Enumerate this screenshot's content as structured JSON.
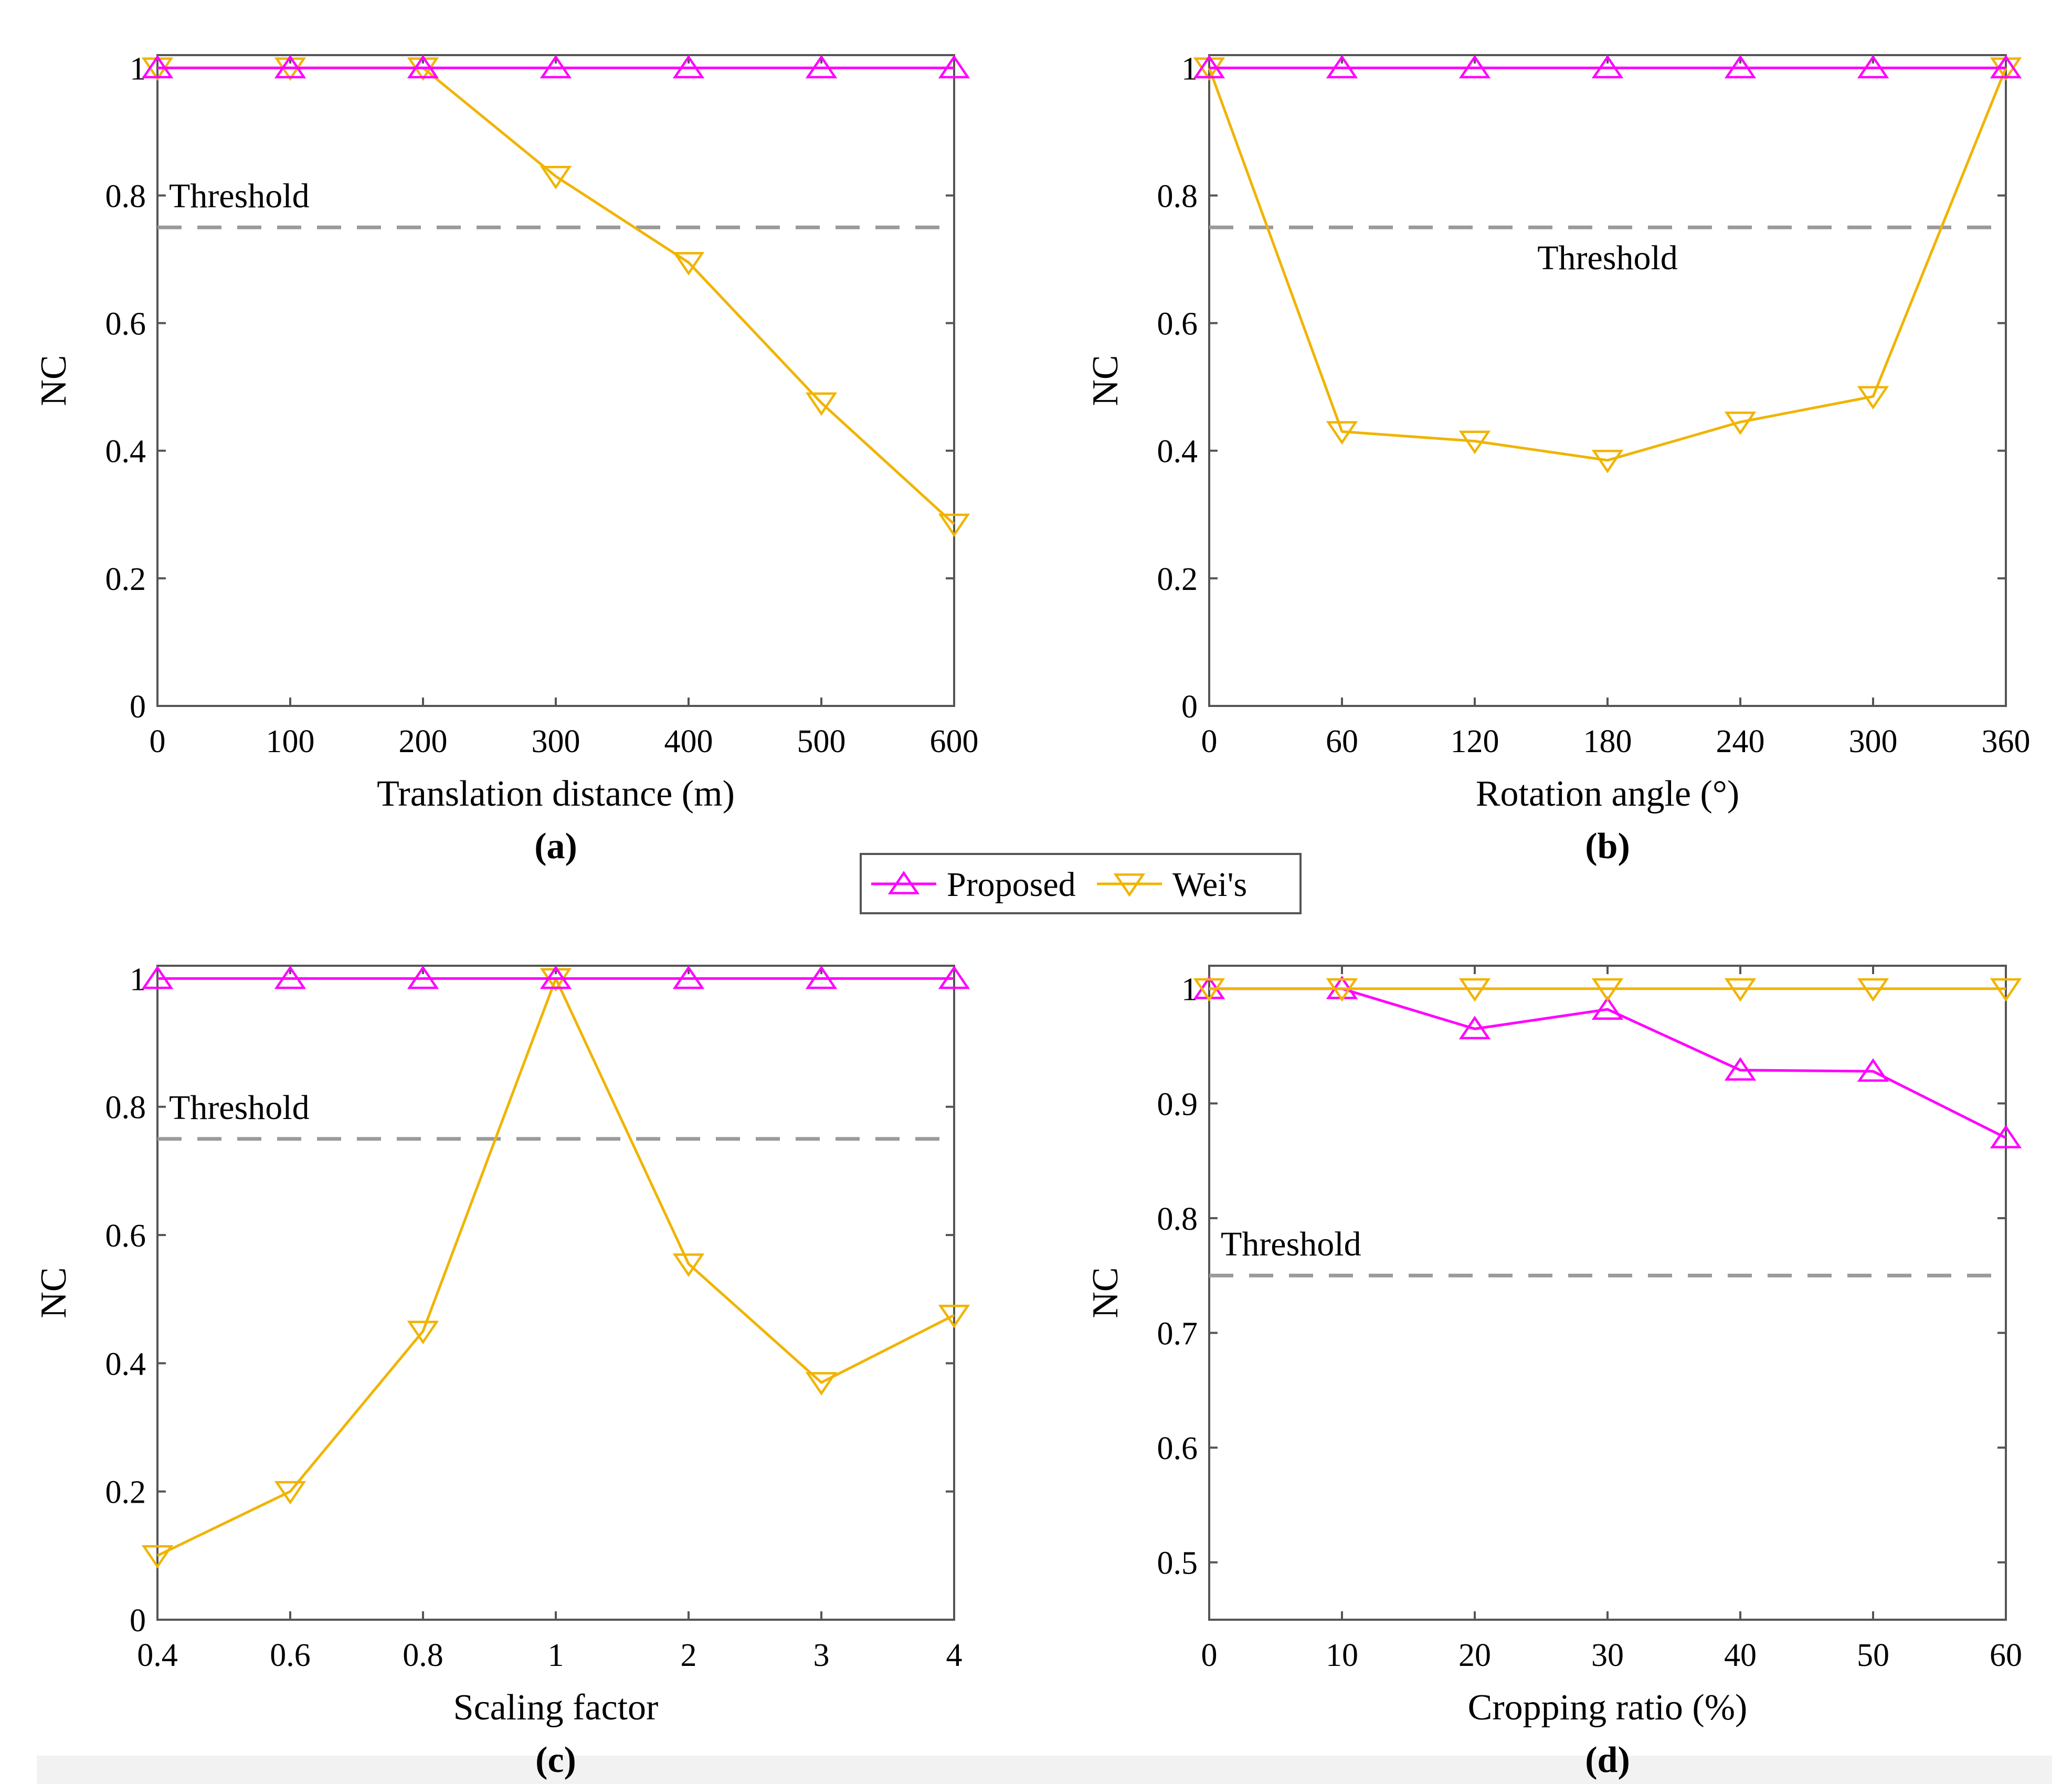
{
  "colors": {
    "proposed": "#ff00ff",
    "weis": "#f0b400",
    "threshold": "#9a9a9a",
    "axis": "#555555"
  },
  "legend": {
    "items": [
      {
        "label": "Proposed",
        "color": "#ff00ff",
        "marker": "triangle-up"
      },
      {
        "label": "Wei's",
        "color": "#f0b400",
        "marker": "triangle-down"
      }
    ]
  },
  "chart_data": [
    {
      "panel": "(a)",
      "type": "line",
      "xlabel": "Translation distance (m)",
      "ylabel": "NC",
      "categories": [
        "0",
        "100",
        "200",
        "300",
        "400",
        "500",
        "600"
      ],
      "ylim": [
        0,
        1.02
      ],
      "yticks": [
        0,
        0.2,
        0.4,
        0.6,
        0.8,
        1
      ],
      "ytick_labels": [
        "0",
        "0.2",
        "0.4",
        "0.6",
        "0.8",
        "1"
      ],
      "threshold": {
        "value": 0.75,
        "label": "Threshold",
        "label_position": "above-left"
      },
      "series": [
        {
          "name": "Proposed",
          "values": [
            1,
            1,
            1,
            1,
            1,
            1,
            1
          ]
        },
        {
          "name": "Wei's",
          "values": [
            1,
            1,
            1,
            0.83,
            0.695,
            0.475,
            0.285
          ]
        }
      ]
    },
    {
      "panel": "(b)",
      "type": "line",
      "xlabel": "Rotation angle (°)",
      "ylabel": "NC",
      "categories": [
        "0",
        "60",
        "120",
        "180",
        "240",
        "300",
        "360"
      ],
      "ylim": [
        0,
        1.02
      ],
      "yticks": [
        0,
        0.2,
        0.4,
        0.6,
        0.8,
        1
      ],
      "ytick_labels": [
        "0",
        "0.2",
        "0.4",
        "0.6",
        "0.8",
        "1"
      ],
      "threshold": {
        "value": 0.75,
        "label": "Threshold",
        "label_position": "below-center"
      },
      "series": [
        {
          "name": "Proposed",
          "values": [
            1,
            1,
            1,
            1,
            1,
            1,
            1
          ]
        },
        {
          "name": "Wei's",
          "values": [
            1,
            0.43,
            0.415,
            0.385,
            0.445,
            0.485,
            1
          ]
        }
      ]
    },
    {
      "panel": "(c)",
      "type": "line",
      "xlabel": "Scaling factor",
      "ylabel": "NC",
      "categories": [
        "0.4",
        "0.6",
        "0.8",
        "1",
        "2",
        "3",
        "4"
      ],
      "ylim": [
        0,
        1.02
      ],
      "yticks": [
        0,
        0.2,
        0.4,
        0.6,
        0.8,
        1
      ],
      "ytick_labels": [
        "0",
        "0.2",
        "0.4",
        "0.6",
        "0.8",
        "1"
      ],
      "threshold": {
        "value": 0.75,
        "label": "Threshold",
        "label_position": "above-left"
      },
      "series": [
        {
          "name": "Proposed",
          "values": [
            1,
            1,
            1,
            1,
            1,
            1,
            1
          ]
        },
        {
          "name": "Wei's",
          "values": [
            0.1,
            0.2,
            0.45,
            1,
            0.555,
            0.37,
            0.475
          ]
        }
      ]
    },
    {
      "panel": "(d)",
      "type": "line",
      "xlabel": "Cropping ratio (%)",
      "ylabel": "NC",
      "categories": [
        "0",
        "10",
        "20",
        "30",
        "40",
        "50",
        "60"
      ],
      "ylim": [
        0.45,
        1.02
      ],
      "yticks": [
        0.5,
        0.6,
        0.7,
        0.8,
        0.9,
        1
      ],
      "ytick_labels": [
        "0.5",
        "0.6",
        "0.7",
        "0.8",
        "0.9",
        "1"
      ],
      "threshold": {
        "value": 0.75,
        "label": "Threshold",
        "label_position": "above-left"
      },
      "series": [
        {
          "name": "Proposed",
          "values": [
            1,
            1,
            0.965,
            0.982,
            0.929,
            0.928,
            0.87
          ]
        },
        {
          "name": "Wei's",
          "values": [
            1,
            1,
            1,
            1,
            1,
            1,
            1
          ]
        }
      ]
    }
  ]
}
